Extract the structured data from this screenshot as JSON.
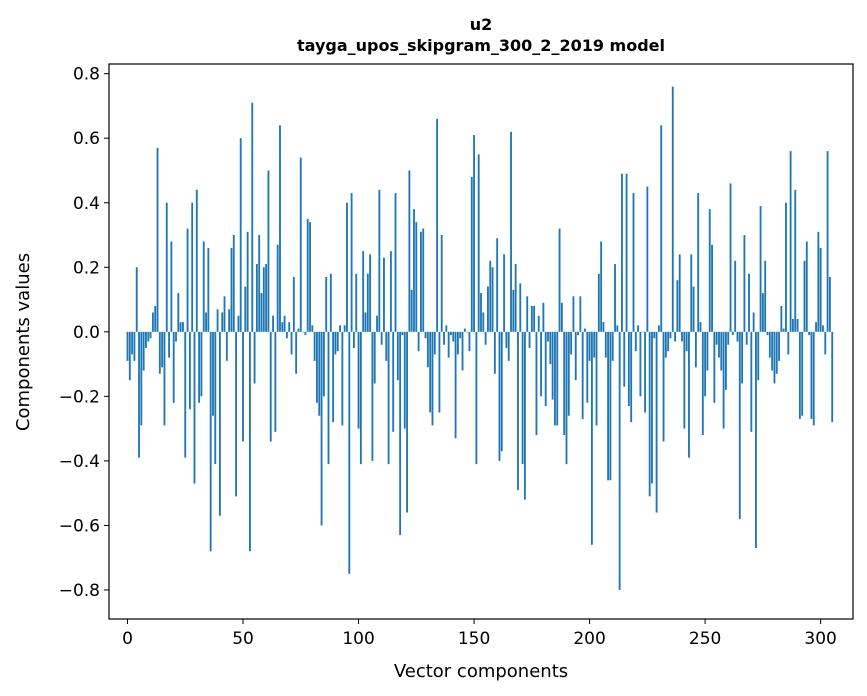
{
  "chart_data": {
    "type": "bar",
    "title": "u2",
    "subtitle": "tayga_upos_skipgram_300_2_2019 model",
    "xlabel": "Vector components",
    "ylabel": "Components values",
    "xlim": [
      -8,
      314
    ],
    "ylim": [
      -0.89,
      0.83
    ],
    "xticks": [
      0,
      50,
      100,
      150,
      200,
      250,
      300
    ],
    "xtick_labels": [
      "0",
      "50",
      "100",
      "150",
      "200",
      "250",
      "300"
    ],
    "yticks": [
      -0.8,
      -0.6,
      -0.4,
      -0.2,
      0.0,
      0.2,
      0.4,
      0.6,
      0.8
    ],
    "ytick_labels": [
      "−0.8",
      "−0.6",
      "−0.4",
      "−0.2",
      "0.0",
      "0.2",
      "0.4",
      "0.6",
      "0.8"
    ],
    "bar_color": "#1f77b4",
    "bar_width": 0.8,
    "values": [
      -0.09,
      -0.15,
      -0.07,
      -0.09,
      0.2,
      -0.39,
      -0.29,
      -0.12,
      -0.05,
      -0.03,
      -0.02,
      0.06,
      0.08,
      0.57,
      -0.13,
      -0.11,
      -0.29,
      0.4,
      -0.08,
      0.28,
      -0.22,
      -0.03,
      0.12,
      0.03,
      0.03,
      -0.39,
      0.32,
      -0.24,
      0.4,
      -0.47,
      0.44,
      -0.22,
      -0.2,
      0.28,
      0.06,
      0.26,
      -0.68,
      -0.26,
      -0.41,
      0.07,
      -0.57,
      0.06,
      0.11,
      -0.09,
      0.07,
      0.26,
      0.3,
      -0.51,
      0.05,
      0.6,
      -0.34,
      0.14,
      0.31,
      -0.68,
      0.71,
      -0.16,
      0.21,
      0.3,
      0.12,
      0.2,
      0.21,
      0.5,
      -0.34,
      0.05,
      -0.31,
      0.27,
      0.64,
      0.03,
      0.05,
      -0.02,
      0.03,
      -0.07,
      0.17,
      -0.13,
      0.01,
      0.54,
      0.0,
      -0.01,
      0.35,
      0.34,
      0.02,
      -0.09,
      -0.22,
      -0.26,
      -0.6,
      -0.2,
      0.17,
      -0.41,
      0.18,
      -0.28,
      -0.07,
      -0.06,
      0.02,
      -0.29,
      0.02,
      0.4,
      -0.75,
      0.43,
      -0.05,
      0.18,
      -0.3,
      -0.41,
      0.25,
      0.06,
      0.18,
      0.24,
      -0.4,
      -0.16,
      0.05,
      0.44,
      -0.04,
      0.23,
      -0.09,
      -0.41,
      0.25,
      -0.31,
      0.43,
      -0.15,
      -0.63,
      -0.01,
      -0.3,
      -0.56,
      0.5,
      0.13,
      0.38,
      0.34,
      -0.06,
      0.31,
      0.32,
      -0.02,
      -0.11,
      -0.25,
      -0.29,
      -0.07,
      0.66,
      -0.25,
      0.3,
      -0.04,
      0.02,
      -0.08,
      -0.01,
      -0.03,
      -0.33,
      -0.07,
      -0.02,
      -0.12,
      0.01,
      0.0,
      -0.06,
      0.48,
      0.61,
      -0.41,
      0.55,
      0.12,
      0.06,
      -0.04,
      0.14,
      0.22,
      0.2,
      -0.13,
      0.29,
      -0.4,
      -0.37,
      0.24,
      -0.05,
      -0.09,
      0.62,
      0.13,
      0.21,
      -0.49,
      0.15,
      -0.41,
      -0.52,
      0.11,
      -0.05,
      0.08,
      0.08,
      -0.32,
      0.05,
      -0.2,
      0.09,
      -0.23,
      -0.03,
      -0.1,
      -0.21,
      -0.29,
      -0.29,
      0.32,
      0.09,
      -0.32,
      -0.41,
      -0.26,
      -0.07,
      0.11,
      -0.15,
      -0.01,
      0.11,
      -0.27,
      0.01,
      -0.22,
      -0.09,
      -0.66,
      -0.08,
      -0.29,
      0.18,
      0.28,
      0.03,
      -0.08,
      -0.46,
      -0.46,
      -0.09,
      0.21,
      0.02,
      -0.8,
      0.49,
      -0.17,
      0.49,
      -0.23,
      -0.28,
      0.43,
      -0.06,
      0.02,
      -0.2,
      0.0,
      -0.25,
      0.45,
      -0.51,
      -0.47,
      -0.02,
      -0.56,
      0.02,
      0.64,
      -0.34,
      -0.08,
      -0.06,
      -0.02,
      0.76,
      -0.03,
      0.16,
      0.24,
      -0.03,
      -0.3,
      -0.06,
      -0.39,
      0.24,
      0.14,
      -0.11,
      0.43,
      0.03,
      -0.32,
      -0.2,
      -0.12,
      0.38,
      0.27,
      -0.22,
      -0.04,
      -0.08,
      -0.12,
      -0.3,
      -0.18,
      -0.04,
      0.46,
      -0.01,
      0.22,
      -0.03,
      -0.58,
      -0.16,
      0.3,
      -0.04,
      0.18,
      -0.31,
      0.06,
      -0.67,
      -0.15,
      0.39,
      0.12,
      0.22,
      -0.01,
      -0.08,
      -0.12,
      -0.16,
      -0.13,
      -0.09,
      0.08,
      0.01,
      0.4,
      -0.07,
      0.56,
      0.04,
      0.44,
      0.04,
      -0.27,
      -0.26,
      0.22,
      0.28,
      -0.01,
      -0.27,
      -0.29,
      0.03,
      0.31,
      0.26,
      0.02,
      -0.07,
      0.56,
      0.17,
      -0.28
    ]
  }
}
